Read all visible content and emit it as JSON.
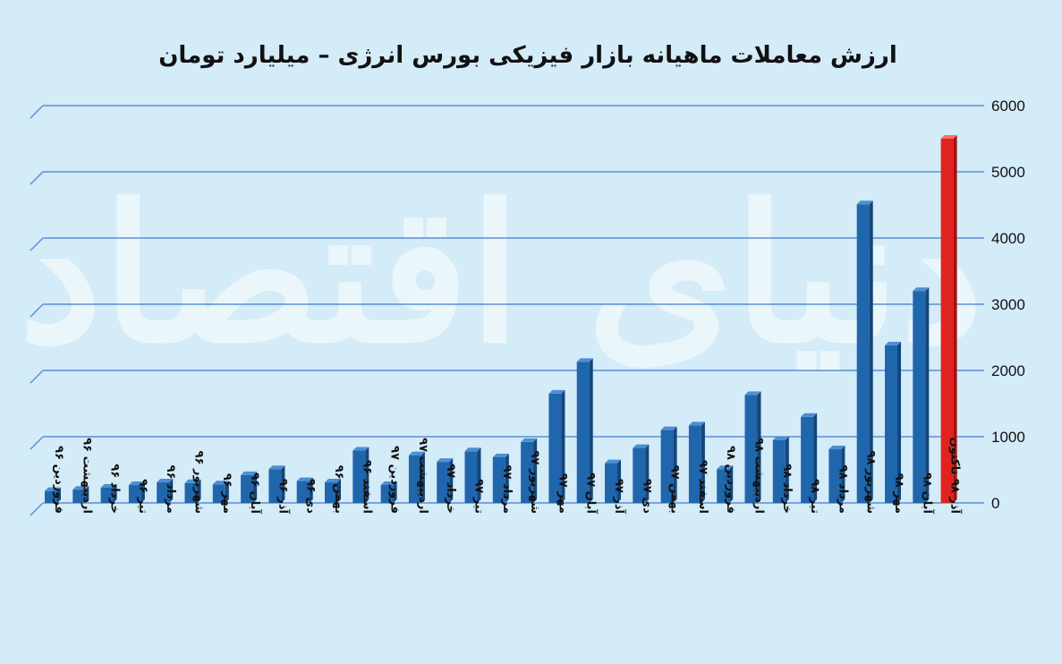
{
  "chart_data": {
    "type": "bar",
    "title": "ارزش معاملات ماهیانه بازار فیزیکی بورس انرژی – میلیارد تومان",
    "xlabel": "",
    "ylabel": "",
    "ylim": [
      0,
      6000
    ],
    "yticks": [
      "0",
      "1000",
      "2000",
      "3000",
      "4000",
      "5000",
      "6000"
    ],
    "ytick_values": [
      0,
      1000,
      2000,
      3000,
      4000,
      5000,
      6000
    ],
    "grid": true,
    "legend": "none",
    "categories": [
      "فروردین ۹۶",
      "اردیبهشت ۹۶",
      "خرداد ۹۶",
      "تیر ۹۶",
      "مرداد ۹۶",
      "شهریور ۹۶",
      "مهر ۹۶",
      "آبان ۹۶",
      "آذر ۹۶",
      "دی ۹۶",
      "بهمن ۹۶",
      "اسفند ۹۶",
      "فروردین ۹۷",
      "اردیبهشت ۹۷",
      "خرداد ۹۷",
      "تیر ۹۷",
      "مرداد ۹۷",
      "شهریور ۹۷",
      "مهر ۹۷",
      "آبان ۹۷",
      "آذر ۹۷",
      "دی ۹۷",
      "بهمن ۹۷",
      "اسفند ۹۷",
      "فروردین ۹۸",
      "اردیبهشت ۹۸",
      "خرداد ۹۸",
      "تیر ۹۸",
      "مرداد ۹۸",
      "شهریور ۹۸",
      "مهر ۹۸",
      "آبان ۹۸",
      "آذر ۹۸ تاکنون"
    ],
    "values": [
      180,
      200,
      230,
      270,
      310,
      300,
      280,
      420,
      510,
      330,
      310,
      790,
      270,
      720,
      620,
      780,
      690,
      920,
      1650,
      2130,
      600,
      830,
      1100,
      1170,
      510,
      1630,
      950,
      1300,
      810,
      4510,
      2380,
      3200,
      5500
    ],
    "colors": {
      "bar": "#1f66ad",
      "bar_top": "#4d8fd0",
      "bar_side": "#14467a",
      "highlight": "#e0231f",
      "highlight_top": "#ff6e63",
      "highlight_side": "#a3120f",
      "grid": "#5b8fd6",
      "background": "#d4ebf8"
    },
    "highlight_index": 32
  },
  "watermark": {
    "text": "دنیای اقتصاد"
  }
}
